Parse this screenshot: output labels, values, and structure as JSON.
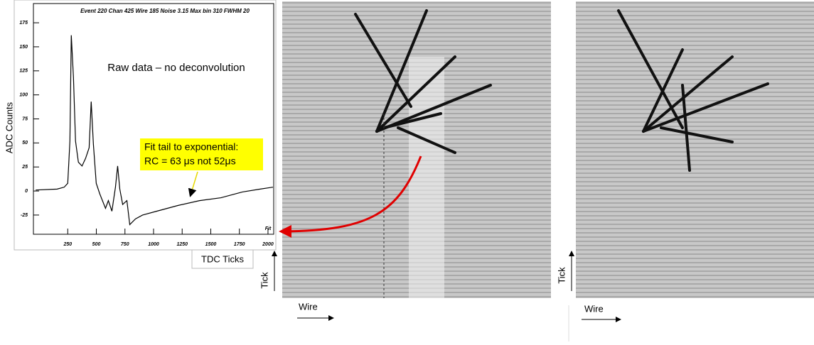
{
  "chart_data": {
    "type": "line",
    "title": "Event 220 Chan  425 Wire 185 Noise  3.15 Max bin  310 FWHM  20",
    "x_label": "TDC Ticks",
    "y_label": "ADC Counts",
    "annotations": [
      "Raw data – no deconvolution",
      "Fit tail to exponential:",
      "RC = 63 μs not 52μs",
      "Fit"
    ],
    "xlim": [
      -50,
      2050
    ],
    "ylim": [
      -45,
      195
    ],
    "xticks": [
      250,
      500,
      750,
      1000,
      1250,
      1500,
      1750,
      2000
    ],
    "yticks": [
      -25,
      0,
      25,
      50,
      75,
      100,
      125,
      150,
      175
    ],
    "series": [
      {
        "color": "#000000",
        "x": [
          -30,
          157,
          219,
          250,
          269,
          281,
          300,
          318,
          343,
          375,
          406,
          437,
          455,
          474,
          499,
          530,
          580,
          605,
          636,
          667,
          686,
          705,
          730,
          767,
          792,
          842,
          904,
          1028,
          1215,
          1402,
          1589,
          1776,
          1931,
          2043
        ],
        "values": [
          1,
          2,
          4,
          8,
          52,
          162,
          118,
          52,
          30,
          26,
          34,
          45,
          93,
          49,
          8,
          -3,
          -18,
          -10,
          -21,
          4,
          26,
          2,
          -14,
          -10,
          -35,
          -29,
          -25,
          -21,
          -15,
          -10,
          -7,
          -1,
          2,
          4
        ]
      }
    ]
  },
  "panels": [
    {
      "y_label": "Tick",
      "x_label": "Wire"
    },
    {
      "y_label": "Tick",
      "x_label": "Wire"
    }
  ]
}
